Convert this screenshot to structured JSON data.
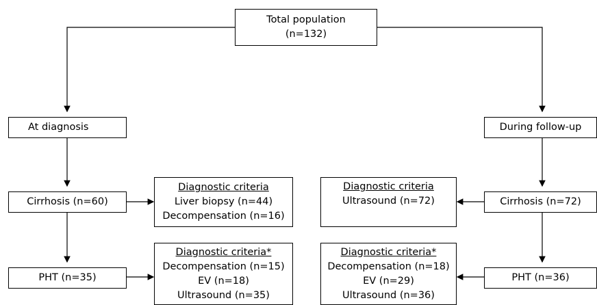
{
  "total": {
    "title": "Total population",
    "count": "(n=132)"
  },
  "at_diagnosis": {
    "label": "At diagnosis"
  },
  "during_followup": {
    "label": "During follow-up"
  },
  "cirrhosis_left": {
    "label": "Cirrhosis (n=60)"
  },
  "cirrhosis_right": {
    "label": "Cirrhosis (n=72)"
  },
  "pht_left": {
    "label": "PHT (n=35)"
  },
  "pht_right": {
    "label": "PHT (n=36)"
  },
  "criteria_cirrhosis_left": {
    "heading": "Diagnostic criteria",
    "lines": [
      "Liver biopsy (n=44)",
      "Decompensation (n=16)"
    ]
  },
  "criteria_cirrhosis_right": {
    "heading": "Diagnostic criteria",
    "lines": [
      "Ultrasound (n=72)"
    ]
  },
  "criteria_pht_left": {
    "heading": "Diagnostic criteria*",
    "lines": [
      "Decompensation (n=15)",
      "EV (n=18)",
      "Ultrasound (n=35)"
    ]
  },
  "criteria_pht_right": {
    "heading": "Diagnostic criteria*",
    "lines": [
      "Decompensation (n=18)",
      "EV (n=29)",
      "Ultrasound (n=36)"
    ]
  }
}
